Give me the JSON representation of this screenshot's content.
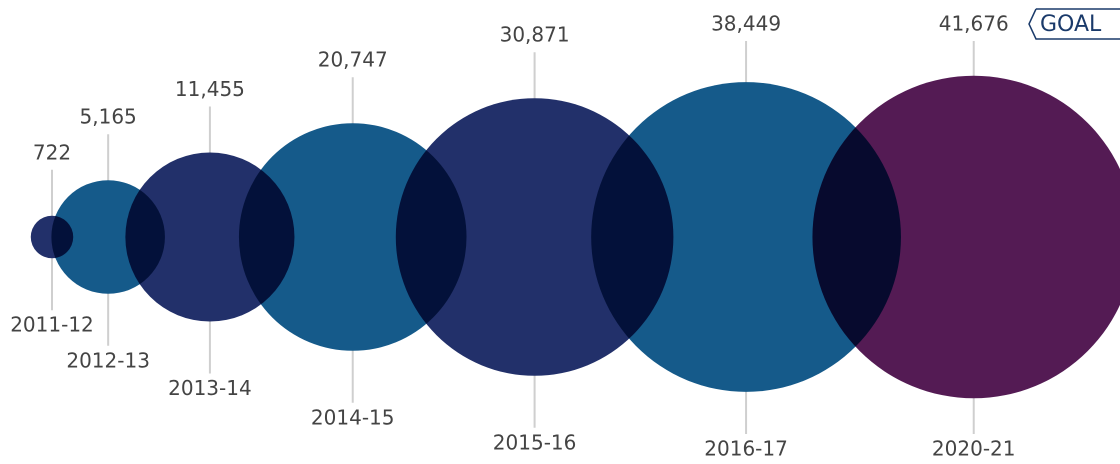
{
  "chart_data": {
    "type": "bubble",
    "categories": [
      "2011-12",
      "2012-13",
      "2013-14",
      "2014-15",
      "2015-16",
      "2016-17",
      "2020-21"
    ],
    "values": [
      722,
      5165,
      11455,
      20747,
      30871,
      38449,
      41676
    ],
    "value_labels": [
      "722",
      "5,165",
      "11,455",
      "20,747",
      "30,871",
      "38,449",
      "41,676"
    ],
    "colors": [
      "#22306a",
      "#155a8a",
      "#22306a",
      "#155a8a",
      "#22306a",
      "#155a8a",
      "#541b54"
    ],
    "annotation": "GOAL"
  }
}
